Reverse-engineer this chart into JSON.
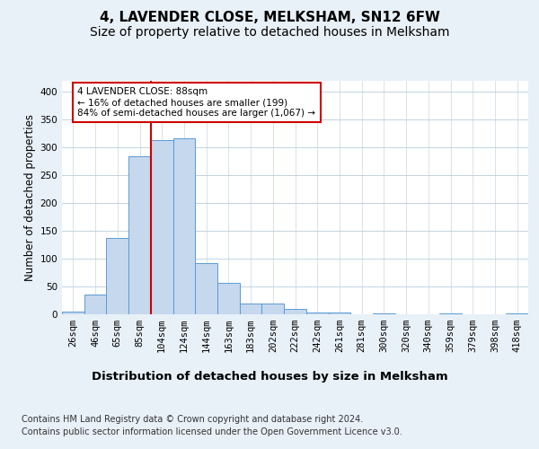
{
  "title": "4, LAVENDER CLOSE, MELKSHAM, SN12 6FW",
  "subtitle": "Size of property relative to detached houses in Melksham",
  "xlabel": "Distribution of detached houses by size in Melksham",
  "ylabel": "Number of detached properties",
  "footer_line1": "Contains HM Land Registry data © Crown copyright and database right 2024.",
  "footer_line2": "Contains public sector information licensed under the Open Government Licence v3.0.",
  "bar_labels": [
    "26sqm",
    "46sqm",
    "65sqm",
    "85sqm",
    "104sqm",
    "124sqm",
    "144sqm",
    "163sqm",
    "183sqm",
    "202sqm",
    "222sqm",
    "242sqm",
    "261sqm",
    "281sqm",
    "300sqm",
    "320sqm",
    "340sqm",
    "359sqm",
    "379sqm",
    "398sqm",
    "418sqm"
  ],
  "bar_values": [
    5,
    35,
    138,
    285,
    314,
    316,
    92,
    57,
    19,
    19,
    9,
    4,
    3,
    0,
    1,
    0,
    0,
    2,
    0,
    0,
    2
  ],
  "bar_color": "#c5d8ed",
  "bar_edge_color": "#5b9bd5",
  "background_color": "#e8f0f8",
  "plot_bg_color": "#ffffff",
  "red_line_index": 3,
  "annotation_text": "4 LAVENDER CLOSE: 88sqm\n← 16% of detached houses are smaller (199)\n84% of semi-detached houses are larger (1,067) →",
  "annotation_box_color": "#ffffff",
  "annotation_box_edge": "#cc0000",
  "red_line_color": "#cc0000",
  "ylim": [
    0,
    420
  ],
  "yticks": [
    0,
    50,
    100,
    150,
    200,
    250,
    300,
    350,
    400
  ],
  "title_fontsize": 11,
  "subtitle_fontsize": 10,
  "xlabel_fontsize": 9.5,
  "ylabel_fontsize": 8.5,
  "tick_fontsize": 7.5,
  "footer_fontsize": 7,
  "annot_fontsize": 7.5
}
